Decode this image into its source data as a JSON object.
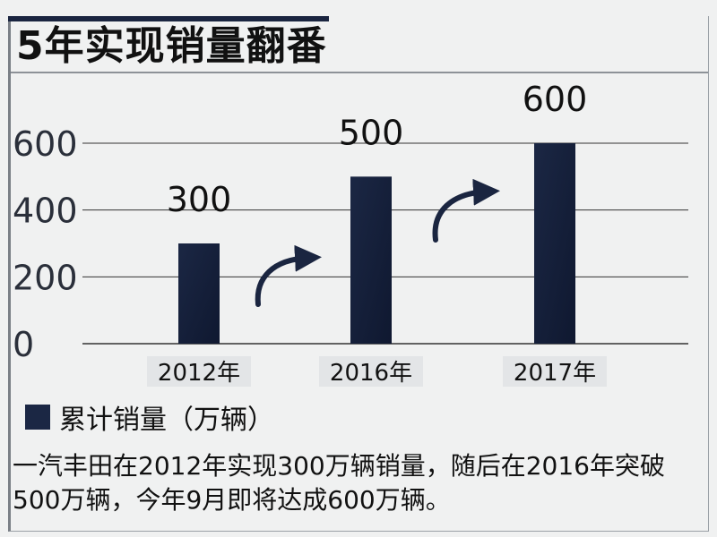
{
  "title": "5年实现销量翻番",
  "legend_label": "累计销量（万辆）",
  "caption": "一汽丰田在2012年实现300万辆销量，随后在2016年突破500万辆，今年9月即将达成600万辆。",
  "colors": {
    "bar": "#1b2744",
    "bar_shade": "#0f1830",
    "grid": "#333333",
    "accent": "#1a2540"
  },
  "chart_data": {
    "type": "bar",
    "title": "5年实现销量翻番",
    "categories": [
      "2012年",
      "2016年",
      "2017年"
    ],
    "series": [
      {
        "name": "累计销量（万辆）",
        "values": [
          300,
          500,
          600
        ]
      }
    ],
    "data_labels": [
      "300",
      "500",
      "600"
    ],
    "yticks": [
      "0",
      "200",
      "400",
      "600"
    ],
    "ylim": [
      0,
      600
    ],
    "xlabel": "",
    "ylabel": "",
    "grid": true,
    "legend_position": "bottom-left",
    "annotations": [
      "up-arrow",
      "up-arrow"
    ]
  }
}
